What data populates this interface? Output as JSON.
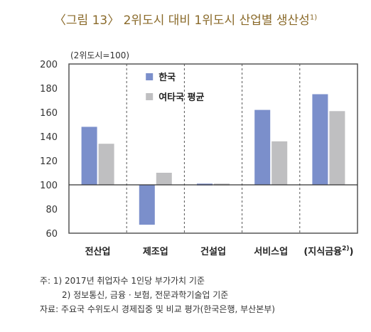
{
  "figure": {
    "title": "〈그림 13〉 2위도시 대비 1위도시 산업별 생산성",
    "title_sup": "1)"
  },
  "chart_data": {
    "type": "bar",
    "unit_label": "(2위도시=100)",
    "categories": [
      "전산업",
      "제조업",
      "건설업",
      "서비스업",
      "(지식금융"
    ],
    "last_category_sup": "2)",
    "last_category_close": ")",
    "series": [
      {
        "name": "한국",
        "color": "#7b8fcb",
        "values": [
          148,
          67,
          101,
          162,
          175
        ]
      },
      {
        "name": "여타국 평균",
        "color": "#bfbfc1",
        "values": [
          134,
          110,
          101,
          136,
          161
        ]
      }
    ],
    "ylim": [
      60,
      200
    ],
    "yticks": [
      60,
      80,
      100,
      120,
      140,
      160,
      180,
      200
    ],
    "baseline": 100,
    "legend_position": "top-left"
  },
  "notes": {
    "line1": "주: 1) 2017년 취업자수 1인당 부가가치 기준",
    "line2": "2) 정보통신, 금융 · 보험, 전문과학기술업 기준",
    "line3": "자료: 주요국 수위도시 경제집중 및 비교 평가(한국은행, 부산본부)"
  }
}
